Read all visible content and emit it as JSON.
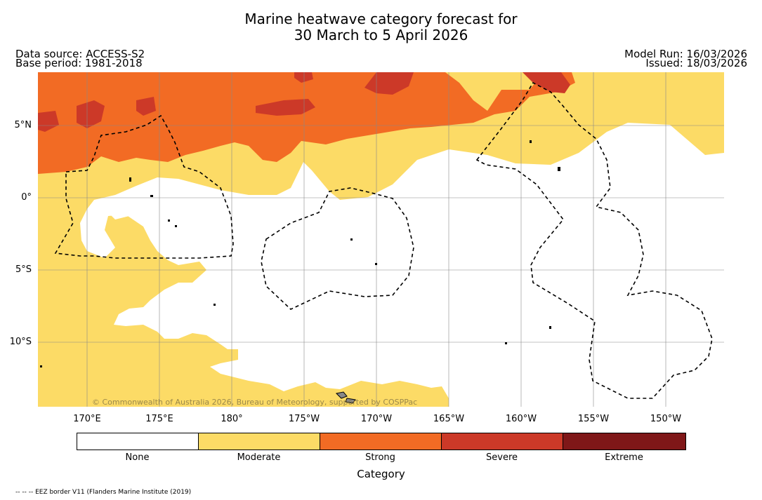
{
  "header": {
    "title_line1": "Marine heatwave category forecast for",
    "title_line2": "30 March to 5 April 2026",
    "data_source": "Data source: ACCESS-S2",
    "base_period": "Base period: 1981-2018",
    "model_run": "Model Run: 16/03/2026",
    "issued": "Issued: 18/03/2026"
  },
  "map": {
    "copyright": "© Commonwealth of Australia 2026, Bureau of Meteorology, supported by COSPPac",
    "lon_ticks": [
      "170°E",
      "175°E",
      "180°",
      "175°W",
      "170°W",
      "165°W",
      "160°W",
      "155°W",
      "150°W"
    ],
    "lat_ticks": [
      "5°N",
      "0°",
      "5°S",
      "10°S"
    ]
  },
  "legend": {
    "title": "Category",
    "categories": [
      {
        "label": "None",
        "color": "#ffffff"
      },
      {
        "label": "Moderate",
        "color": "#fcdb66"
      },
      {
        "label": "Strong",
        "color": "#f26b24"
      },
      {
        "label": "Severe",
        "color": "#cc3928"
      },
      {
        "label": "Extreme",
        "color": "#7f1718"
      }
    ]
  },
  "footer": {
    "eez_note": "-- -- -- EEZ border V11 (Flanders Marine Institute (2019)"
  }
}
